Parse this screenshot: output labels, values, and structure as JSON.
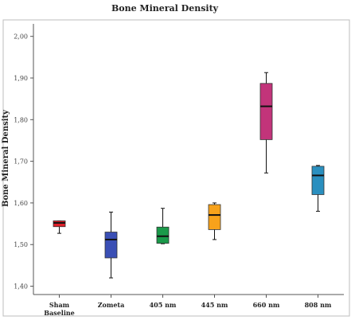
{
  "chart_data": {
    "type": "box",
    "title": "Bone Mineral Density",
    "xlabel": "",
    "ylabel": "Bone Mineral Density",
    "ylim": [
      1.38,
      2.03
    ],
    "yticks": [
      {
        "value": 1.4,
        "label": "1,40"
      },
      {
        "value": 1.5,
        "label": "1,50"
      },
      {
        "value": 1.6,
        "label": "1,60"
      },
      {
        "value": 1.7,
        "label": "1,70"
      },
      {
        "value": 1.8,
        "label": "1,80"
      },
      {
        "value": 1.9,
        "label": "1,90"
      },
      {
        "value": 2.0,
        "label": "2,00"
      }
    ],
    "grid": false,
    "series": [
      {
        "category": "Sham Baseline",
        "label_lines": [
          "Sham",
          "Baseline"
        ],
        "color": "#e0202a",
        "min": 1.527,
        "q1": 1.543,
        "median": 1.552,
        "q3": 1.557,
        "max": 1.557
      },
      {
        "category": "Zometa",
        "label_lines": [
          "Zometa"
        ],
        "color": "#3a4fb5",
        "min": 1.42,
        "q1": 1.468,
        "median": 1.512,
        "q3": 1.53,
        "max": 1.578
      },
      {
        "category": "405 nm",
        "label_lines": [
          "405 nm"
        ],
        "color": "#1a9a4a",
        "min": 1.502,
        "q1": 1.503,
        "median": 1.52,
        "q3": 1.542,
        "max": 1.587
      },
      {
        "category": "445 nm",
        "label_lines": [
          "445 nm"
        ],
        "color": "#f7a21b",
        "min": 1.512,
        "q1": 1.536,
        "median": 1.571,
        "q3": 1.596,
        "max": 1.6
      },
      {
        "category": "660 nm",
        "label_lines": [
          "660 nm"
        ],
        "color": "#c2347a",
        "min": 1.672,
        "q1": 1.752,
        "median": 1.832,
        "q3": 1.887,
        "max": 1.913
      },
      {
        "category": "808 nm",
        "label_lines": [
          "808 nm"
        ],
        "color": "#2a8fbf",
        "min": 1.58,
        "q1": 1.62,
        "median": 1.666,
        "q3": 1.688,
        "max": 1.69
      }
    ]
  }
}
